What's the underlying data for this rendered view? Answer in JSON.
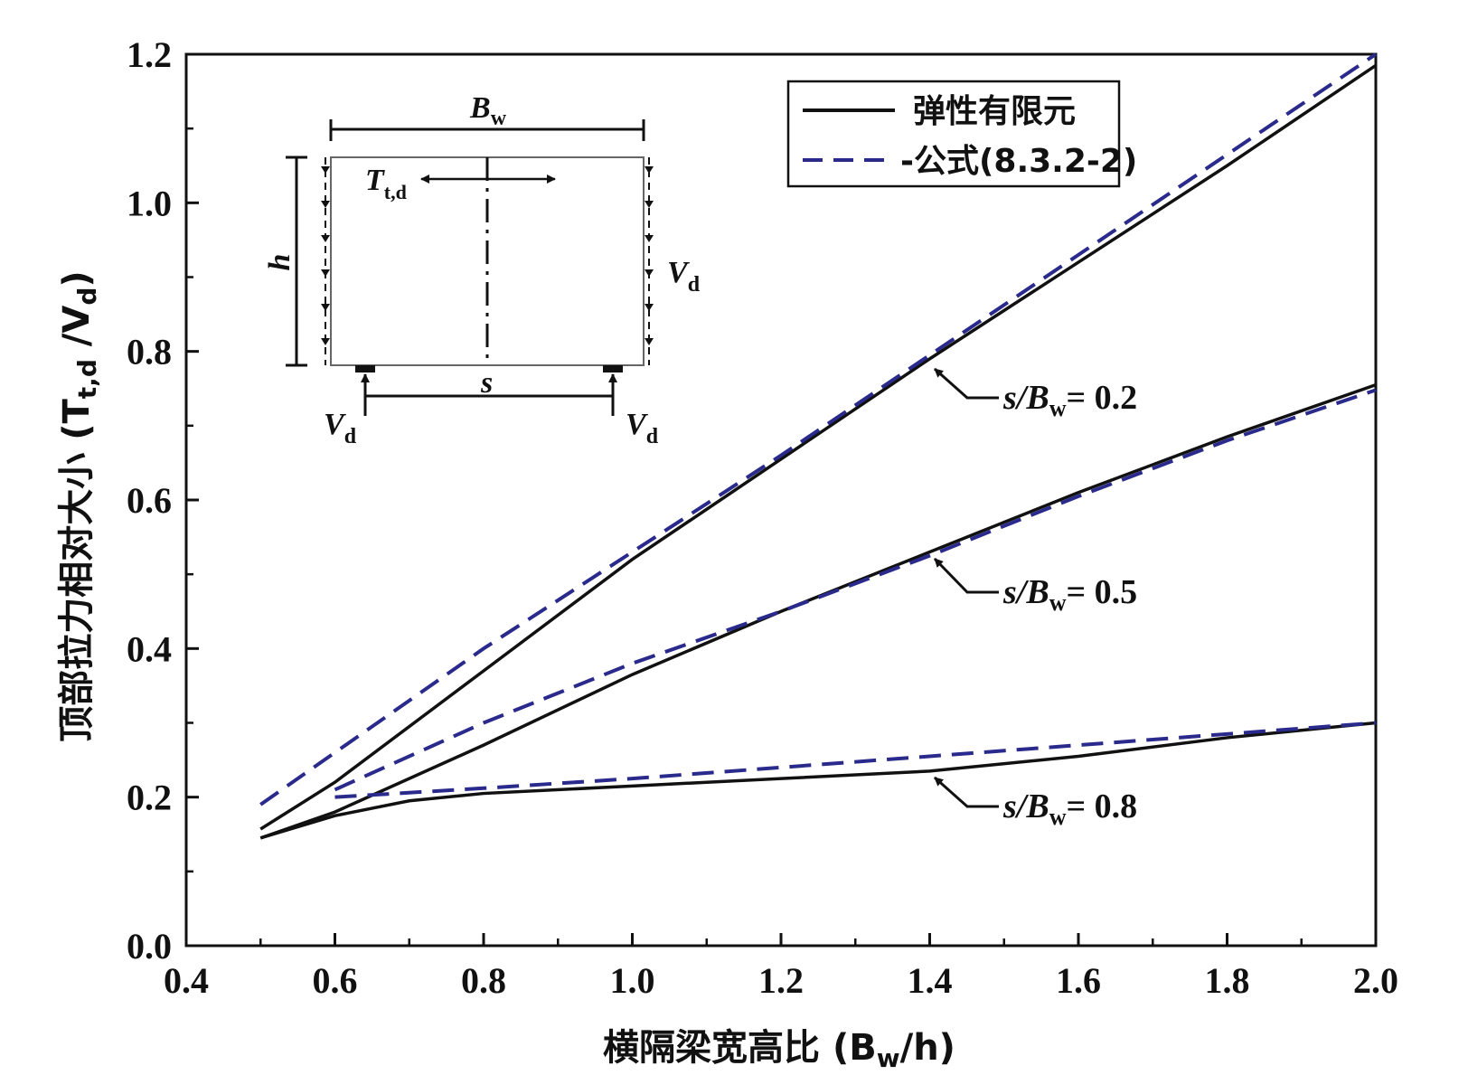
{
  "chart_data": {
    "type": "line",
    "xlabel": "横隔梁宽高比 (B",
    "xlabel_sub": "w",
    "xlabel_end": "/h)",
    "ylabel": "顶部拉力相对大小 (T",
    "ylabel_sub": "t,d",
    "ylabel_mid": " /V",
    "ylabel_sub2": "d",
    "ylabel_end": ")",
    "xlim": [
      0.4,
      2.0
    ],
    "ylim": [
      0.0,
      1.2
    ],
    "x_ticks": [
      "0.4",
      "0.6",
      "0.8",
      "1.0",
      "1.2",
      "1.4",
      "1.6",
      "1.8",
      "2.0"
    ],
    "y_ticks": [
      "0.0",
      "0.2",
      "0.4",
      "0.6",
      "0.8",
      "1.0",
      "1.2"
    ],
    "legend": {
      "position": "top-right",
      "entries": [
        "弹性有限元",
        "-公式(8.3.2-2)"
      ]
    },
    "colors": {
      "fem": "#111111",
      "formula": "#2a2a8c"
    },
    "series": [
      {
        "name": "弹性有限元",
        "group": "s/Bw=0.2",
        "style": "solid",
        "x": [
          0.5,
          0.6,
          0.8,
          1.0,
          1.2,
          1.4,
          1.6,
          1.8,
          2.0
        ],
        "y": [
          0.157,
          0.22,
          0.37,
          0.52,
          0.655,
          0.79,
          0.92,
          1.05,
          1.185
        ]
      },
      {
        "name": "-公式(8.3.2-2)",
        "group": "s/Bw=0.2",
        "style": "dashed",
        "x": [
          0.5,
          0.6,
          0.8,
          1.0,
          1.2,
          1.4,
          1.6,
          1.8,
          2.0
        ],
        "y": [
          0.19,
          0.26,
          0.4,
          0.53,
          0.66,
          0.795,
          0.93,
          1.065,
          1.2
        ]
      },
      {
        "name": "弹性有限元",
        "group": "s/Bw=0.5",
        "style": "solid",
        "x": [
          0.5,
          0.6,
          0.8,
          1.0,
          1.2,
          1.4,
          1.6,
          1.8,
          2.0
        ],
        "y": [
          0.145,
          0.18,
          0.27,
          0.365,
          0.45,
          0.53,
          0.61,
          0.685,
          0.755
        ]
      },
      {
        "name": "-公式(8.3.2-2)",
        "group": "s/Bw=0.5",
        "style": "dashed",
        "x": [
          0.6,
          0.8,
          1.0,
          1.2,
          1.4,
          1.6,
          1.8,
          2.0
        ],
        "y": [
          0.21,
          0.3,
          0.38,
          0.45,
          0.525,
          0.605,
          0.68,
          0.748
        ]
      },
      {
        "name": "弹性有限元",
        "group": "s/Bw=0.8",
        "style": "solid",
        "x": [
          0.5,
          0.6,
          0.7,
          0.8,
          1.0,
          1.2,
          1.4,
          1.6,
          1.8,
          2.0
        ],
        "y": [
          0.145,
          0.175,
          0.195,
          0.205,
          0.215,
          0.225,
          0.235,
          0.255,
          0.28,
          0.3
        ]
      },
      {
        "name": "-公式(8.3.2-2)",
        "group": "s/Bw=0.8",
        "style": "dashed",
        "x": [
          0.6,
          0.8,
          1.0,
          1.2,
          1.4,
          1.6,
          1.8,
          2.0
        ],
        "y": [
          0.2,
          0.212,
          0.225,
          0.24,
          0.255,
          0.27,
          0.285,
          0.3
        ]
      }
    ],
    "annotations": [
      {
        "text": "s/Bw= 0.2",
        "s": "s",
        "slash": "/B",
        "sub": "w",
        "value": "= 0.2",
        "arrow_to": [
          1.4,
          0.79
        ]
      },
      {
        "text": "s/Bw= 0.5",
        "s": "s",
        "slash": "/B",
        "sub": "w",
        "value": "= 0.5",
        "arrow_to": [
          1.4,
          0.53
        ]
      },
      {
        "text": "s/Bw= 0.8",
        "s": "s",
        "slash": "/B",
        "sub": "w",
        "value": "= 0.8",
        "arrow_to": [
          1.4,
          0.235
        ]
      }
    ],
    "inset": {
      "bw": "B",
      "bw_sub": "w",
      "t": "T",
      "t_sub": "t,d",
      "h": "h",
      "vd": "V",
      "vd_sub": "d",
      "s": "s"
    }
  }
}
